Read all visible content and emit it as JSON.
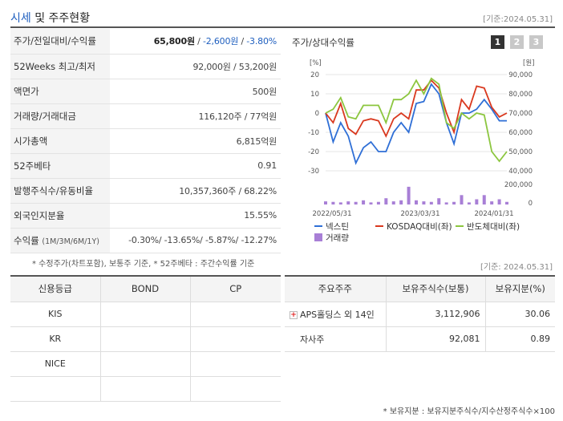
{
  "header": {
    "title_a": "시세",
    "title_b": "및 주주현황",
    "date": "[기준:2024.05.31]"
  },
  "info_rows": [
    {
      "label": "주가/전일대비/수익률",
      "v1": "65,800원",
      "v2": "-2,600원",
      "v3": "-3.80%"
    },
    {
      "label": "52Weeks 최고/최저",
      "value": "92,000원 / 53,200원"
    },
    {
      "label": "액면가",
      "value": "500원"
    },
    {
      "label": "거래량/거래대금",
      "value": "116,120주 / 77억원"
    },
    {
      "label": "시가총액",
      "value": "6,815억원"
    },
    {
      "label": "52주베타",
      "value": "0.91"
    },
    {
      "label": "발행주식수/유동비율",
      "value": "10,357,360주 / 68.22%"
    },
    {
      "label": "외국인지분율",
      "value": "15.55%"
    },
    {
      "label": "수익률",
      "sub": "(1M/3M/6M/1Y)",
      "value": "-0.30%/ -13.65%/ -5.87%/ -12.27%"
    }
  ],
  "note1": "* 수정주가(차트포함), 보통주 기준, * 52주베타 : 주간수익률 기준",
  "chart": {
    "title": "주가/상대수익률",
    "period_buttons": [
      "1",
      "2",
      "3"
    ],
    "left_unit": "[%]",
    "right_unit": "[원]",
    "left_ticks": [
      "20",
      "10",
      "0",
      "-10",
      "-20",
      "-30"
    ],
    "right_ticks": [
      "90,000",
      "80,000",
      "70,000",
      "60,000",
      "50,000",
      "40,000"
    ],
    "vol_tick_top": "200,000",
    "vol_tick_bottom": "0",
    "x_labels": [
      "2022/05/31",
      "2023/03/31",
      "2024/01/31"
    ],
    "legend": [
      "넥스틴",
      "KOSDAQ대비(좌)",
      "반도체대비(좌)",
      "거래량"
    ],
    "colors": {
      "stock": "#2f6fd6",
      "kosdaq": "#d9381e",
      "semi": "#8cc63f",
      "volume": "#a87fd6"
    }
  },
  "chart_data": {
    "type": "line",
    "series": [
      {
        "name": "넥스틴",
        "axis": "left",
        "values": [
          0,
          -15,
          -5,
          -12,
          -26,
          -18,
          -15,
          -20,
          -20,
          -10,
          -5,
          -10,
          5,
          6,
          15,
          10,
          -5,
          -16,
          0,
          0,
          2,
          7,
          2,
          -4,
          -4
        ]
      },
      {
        "name": "KOSDAQ대비(좌)",
        "axis": "left",
        "values": [
          0,
          -5,
          5,
          -8,
          -11,
          -4,
          -3,
          -4,
          -12,
          -3,
          0,
          -3,
          12,
          12,
          17,
          13,
          0,
          -10,
          7,
          2,
          14,
          13,
          3,
          -2,
          0
        ]
      },
      {
        "name": "반도체대비(좌)",
        "axis": "left",
        "values": [
          0,
          2,
          8,
          -2,
          -3,
          4,
          4,
          4,
          -5,
          7,
          7,
          10,
          17,
          10,
          18,
          15,
          -5,
          -8,
          0,
          -3,
          0,
          -1,
          -20,
          -25,
          -20
        ]
      }
    ],
    "volume": {
      "name": "거래량",
      "values": [
        30000,
        25000,
        20000,
        30000,
        25000,
        40000,
        20000,
        25000,
        60000,
        30000,
        40000,
        170000,
        40000,
        30000,
        25000,
        60000,
        20000,
        25000,
        90000,
        20000,
        50000,
        90000,
        30000,
        50000,
        25000
      ],
      "ylim": [
        0,
        200000
      ]
    },
    "left_ylim": [
      -30,
      20
    ],
    "right_ylim": [
      40000,
      90000
    ]
  },
  "credit": {
    "date": "[기준: 2024.05.31]",
    "headers": [
      "신용등급",
      "BOND",
      "CP"
    ],
    "rows": [
      [
        "KIS",
        "",
        ""
      ],
      [
        "KR",
        "",
        ""
      ],
      [
        "NICE",
        "",
        ""
      ],
      [
        "",
        "",
        ""
      ]
    ]
  },
  "shareholders": {
    "headers": [
      "주요주주",
      "보유주식수(보통)",
      "보유지분(%)"
    ],
    "rows": [
      {
        "name": "APS홀딩스 외 14인",
        "shares": "3,112,906",
        "pct": "30.06",
        "expand": "+"
      },
      {
        "name": "자사주",
        "shares": "92,081",
        "pct": "0.89"
      }
    ]
  },
  "note2": "* 보유지분 : 보유지분주식수/지수산정주식수×100"
}
